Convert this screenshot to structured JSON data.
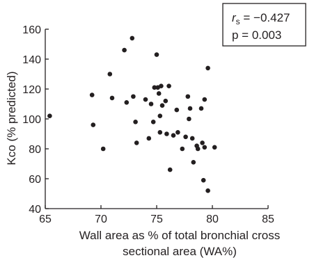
{
  "chart_data": {
    "type": "scatter",
    "xlabel_line1": "Wall area as % of total bronchial cross",
    "xlabel_line2": "sectional area (WA%)",
    "ylabel": "Kco (% predicted)",
    "xlim": [
      65,
      85
    ],
    "ylim": [
      40,
      160
    ],
    "xticks": [
      65,
      70,
      75,
      80,
      85
    ],
    "yticks": [
      40,
      60,
      80,
      100,
      120,
      140,
      160
    ],
    "grid": false,
    "legend_position": "top-right",
    "stats": {
      "rs_label": "r",
      "rs_subscript": "s",
      "rs_value": " = −0.427",
      "p_line": "p = 0.003"
    },
    "points": [
      [
        65.4,
        102
      ],
      [
        69.2,
        116
      ],
      [
        69.3,
        96
      ],
      [
        70.2,
        80
      ],
      [
        70.8,
        130
      ],
      [
        71.0,
        114
      ],
      [
        72.1,
        146
      ],
      [
        72.3,
        111
      ],
      [
        72.8,
        154
      ],
      [
        72.9,
        115
      ],
      [
        73.1,
        98
      ],
      [
        73.2,
        84
      ],
      [
        74.0,
        113
      ],
      [
        74.3,
        87
      ],
      [
        74.5,
        110
      ],
      [
        74.7,
        98
      ],
      [
        74.8,
        121
      ],
      [
        75.0,
        143
      ],
      [
        75.1,
        121
      ],
      [
        75.2,
        117
      ],
      [
        75.3,
        102
      ],
      [
        75.3,
        91
      ],
      [
        75.4,
        122
      ],
      [
        75.5,
        109
      ],
      [
        75.8,
        112
      ],
      [
        75.9,
        90
      ],
      [
        76.1,
        122
      ],
      [
        76.2,
        66
      ],
      [
        76.5,
        89
      ],
      [
        76.8,
        106
      ],
      [
        76.9,
        91
      ],
      [
        77.3,
        80
      ],
      [
        77.6,
        88
      ],
      [
        77.8,
        115
      ],
      [
        77.9,
        100
      ],
      [
        78.0,
        107
      ],
      [
        78.2,
        87
      ],
      [
        78.3,
        71
      ],
      [
        78.6,
        82
      ],
      [
        78.7,
        80
      ],
      [
        79.0,
        107
      ],
      [
        79.1,
        84
      ],
      [
        79.2,
        59
      ],
      [
        79.3,
        113
      ],
      [
        79.3,
        81
      ],
      [
        79.6,
        52
      ],
      [
        79.6,
        134
      ],
      [
        80.2,
        81
      ]
    ]
  }
}
